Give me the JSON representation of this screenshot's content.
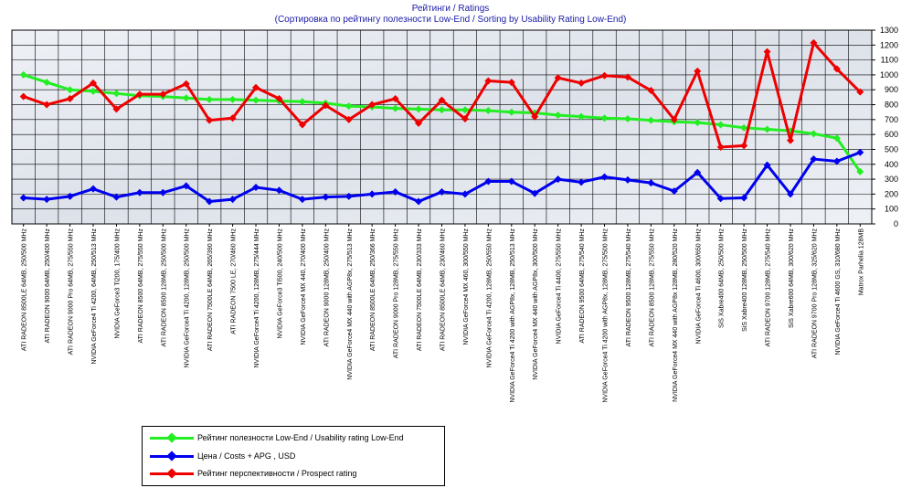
{
  "title": "Рейтинги / Ratings",
  "subtitle": "(Сортировка по рейтингу полезности Low-End / Sorting by Usability Rating Low-End)",
  "chart_data": {
    "type": "line",
    "ylim": [
      0,
      1300
    ],
    "yticks": [
      0,
      100,
      200,
      300,
      400,
      500,
      600,
      700,
      800,
      900,
      1000,
      1100,
      1200,
      1300
    ],
    "grid": true,
    "legend_position": "bottom-left",
    "categories": [
      "ATI RADEON 8500LE 64MB, 250/500 MHz",
      "ATI RADEON 9000 64MB, 250/400 MHz",
      "ATI RADEON 9000 Pro 64MB, 275/550 MHz",
      "NVIDIA GeForce4 Ti 4200, 64MB, 250/513 MHz",
      "NVIDIA GeForce3 Ti200, 175/400 MHz",
      "ATI RADEON 8500 64MB, 275/550 MHz",
      "ATI RADEON 8500 128MB, 250/500 MHz",
      "NVIDIA GeForce4 Ti 4200, 128MB, 250/500 MHz",
      "ATI RADEON 7500LE 64MB, 265/390 MHz",
      "ATI RADEON 7500 LE, 270/460 MHz",
      "NVIDIA GeForce4 Ti 4200, 128MB, 275/444 MHz",
      "NVIDIA GeForce3 Ti500, 240/500 MHz",
      "NVIDIA GeForce4 MX 440, 270/400 MHz",
      "ATI RADEON 9000 128MB, 250/400 MHz",
      "NVIDIA GeForce4 MX 440 with AGP8x, 275/513 MHz",
      "ATI RADEON 8500LE 64MB, 250/366 MHz",
      "ATI RADEON 9000 Pro 128MB, 275/550 MHz",
      "ATI RADEON 7500LE 64MB, 230/333 MHz",
      "ATI RADEON 8500LE 64MB, 230/460 MHz",
      "NVIDIA GeForce4 MX 460, 300/550 MHz",
      "NVIDIA GeForce4 Ti 4200, 128MB, 250/550 MHz",
      "NVIDIA GeForce4 Ti 4200 with AGP8x, 128MB, 250/513 MHz",
      "NVIDIA GeForce4 MX 440 with AGP8x, 300/500 MHz",
      "NVIDIA GeForce4 Ti 4400, 275/550 MHz",
      "ATI RADEON 9500 64MB, 275/540 MHz",
      "NVIDIA GeForce4 Ti 4200 with AGP8x, 128MB, 275/500 MHz",
      "ATI RADEON 9500 128MB, 275/540 MHz",
      "ATI RADEON 8500 128MB, 275/550 MHz",
      "NVIDIA GeForce4 MX 440 with AGP8x 128MB, 280/520 MHz",
      "NVIDIA GeForce4 Ti 4600, 300/650 MHz",
      "SiS Xabre400 64MB, 250/500 MHz",
      "SiS Xabre400 128MB, 250/500 MHz",
      "ATI RADEON 9700 128MB, 275/540 MHz",
      "SiS Xabre600 64MB, 300/620 MHz",
      "ATI RADEON 9700 Pro 128MB, 325/620 MHz",
      "NVIDIA GeForce4 Ti 4600 GS, 310/680 MHz",
      "Matrox Parhelia 128MB"
    ],
    "series": [
      {
        "name": "Рейтинг полезности Low-End / Usability rating Low-End",
        "color": "#22ee22",
        "values": [
          1000,
          950,
          900,
          890,
          875,
          860,
          855,
          845,
          835,
          835,
          830,
          825,
          820,
          810,
          790,
          785,
          775,
          770,
          765,
          765,
          760,
          750,
          745,
          730,
          720,
          710,
          705,
          695,
          685,
          680,
          665,
          645,
          635,
          625,
          605,
          575,
          350
        ]
      },
      {
        "name": "Цена / Costs + APG , USD",
        "color": "#0000ee",
        "values": [
          175,
          165,
          185,
          235,
          180,
          210,
          210,
          255,
          150,
          165,
          245,
          225,
          165,
          180,
          185,
          200,
          215,
          150,
          215,
          200,
          285,
          285,
          205,
          300,
          280,
          315,
          295,
          275,
          220,
          345,
          170,
          175,
          395,
          200,
          435,
          420,
          480
        ]
      },
      {
        "name": "Рейтинг перспективности / Prospect rating",
        "color": "#ee0000",
        "values": [
          855,
          800,
          840,
          945,
          770,
          870,
          870,
          940,
          695,
          710,
          915,
          840,
          665,
          795,
          700,
          800,
          840,
          675,
          830,
          705,
          960,
          950,
          720,
          980,
          945,
          995,
          985,
          895,
          700,
          1025,
          515,
          525,
          1155,
          560,
          1215,
          1040,
          885
        ]
      }
    ]
  }
}
